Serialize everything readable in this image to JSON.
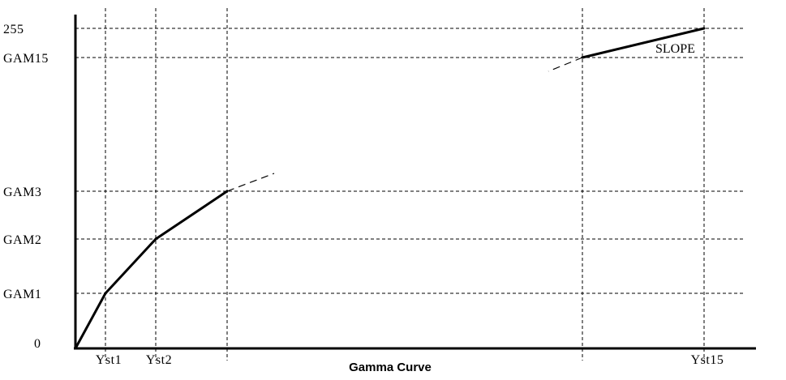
{
  "chart_data": {
    "type": "line",
    "xlabel": "Gamma Curve",
    "x_ticks": [
      "Yst1",
      "Yst2",
      "",
      "",
      "Yst15"
    ],
    "y_ticks": [
      "0",
      "GAM1",
      "GAM2",
      "GAM3",
      "GAM15",
      "255"
    ],
    "grid": true,
    "series": [
      {
        "segment": "low",
        "points": [
          {
            "x": 0,
            "y": 0
          },
          {
            "x": "Yst1",
            "y": "GAM1"
          },
          {
            "x": "Yst2",
            "y": "GAM2"
          },
          {
            "x": "",
            "y": "GAM3"
          }
        ]
      },
      {
        "segment": "high",
        "points": [
          {
            "x": "",
            "y": "GAM15"
          },
          {
            "x": "Yst15",
            "y": "255"
          }
        ]
      }
    ],
    "annotations": [
      {
        "text": "SLOPE"
      }
    ]
  }
}
